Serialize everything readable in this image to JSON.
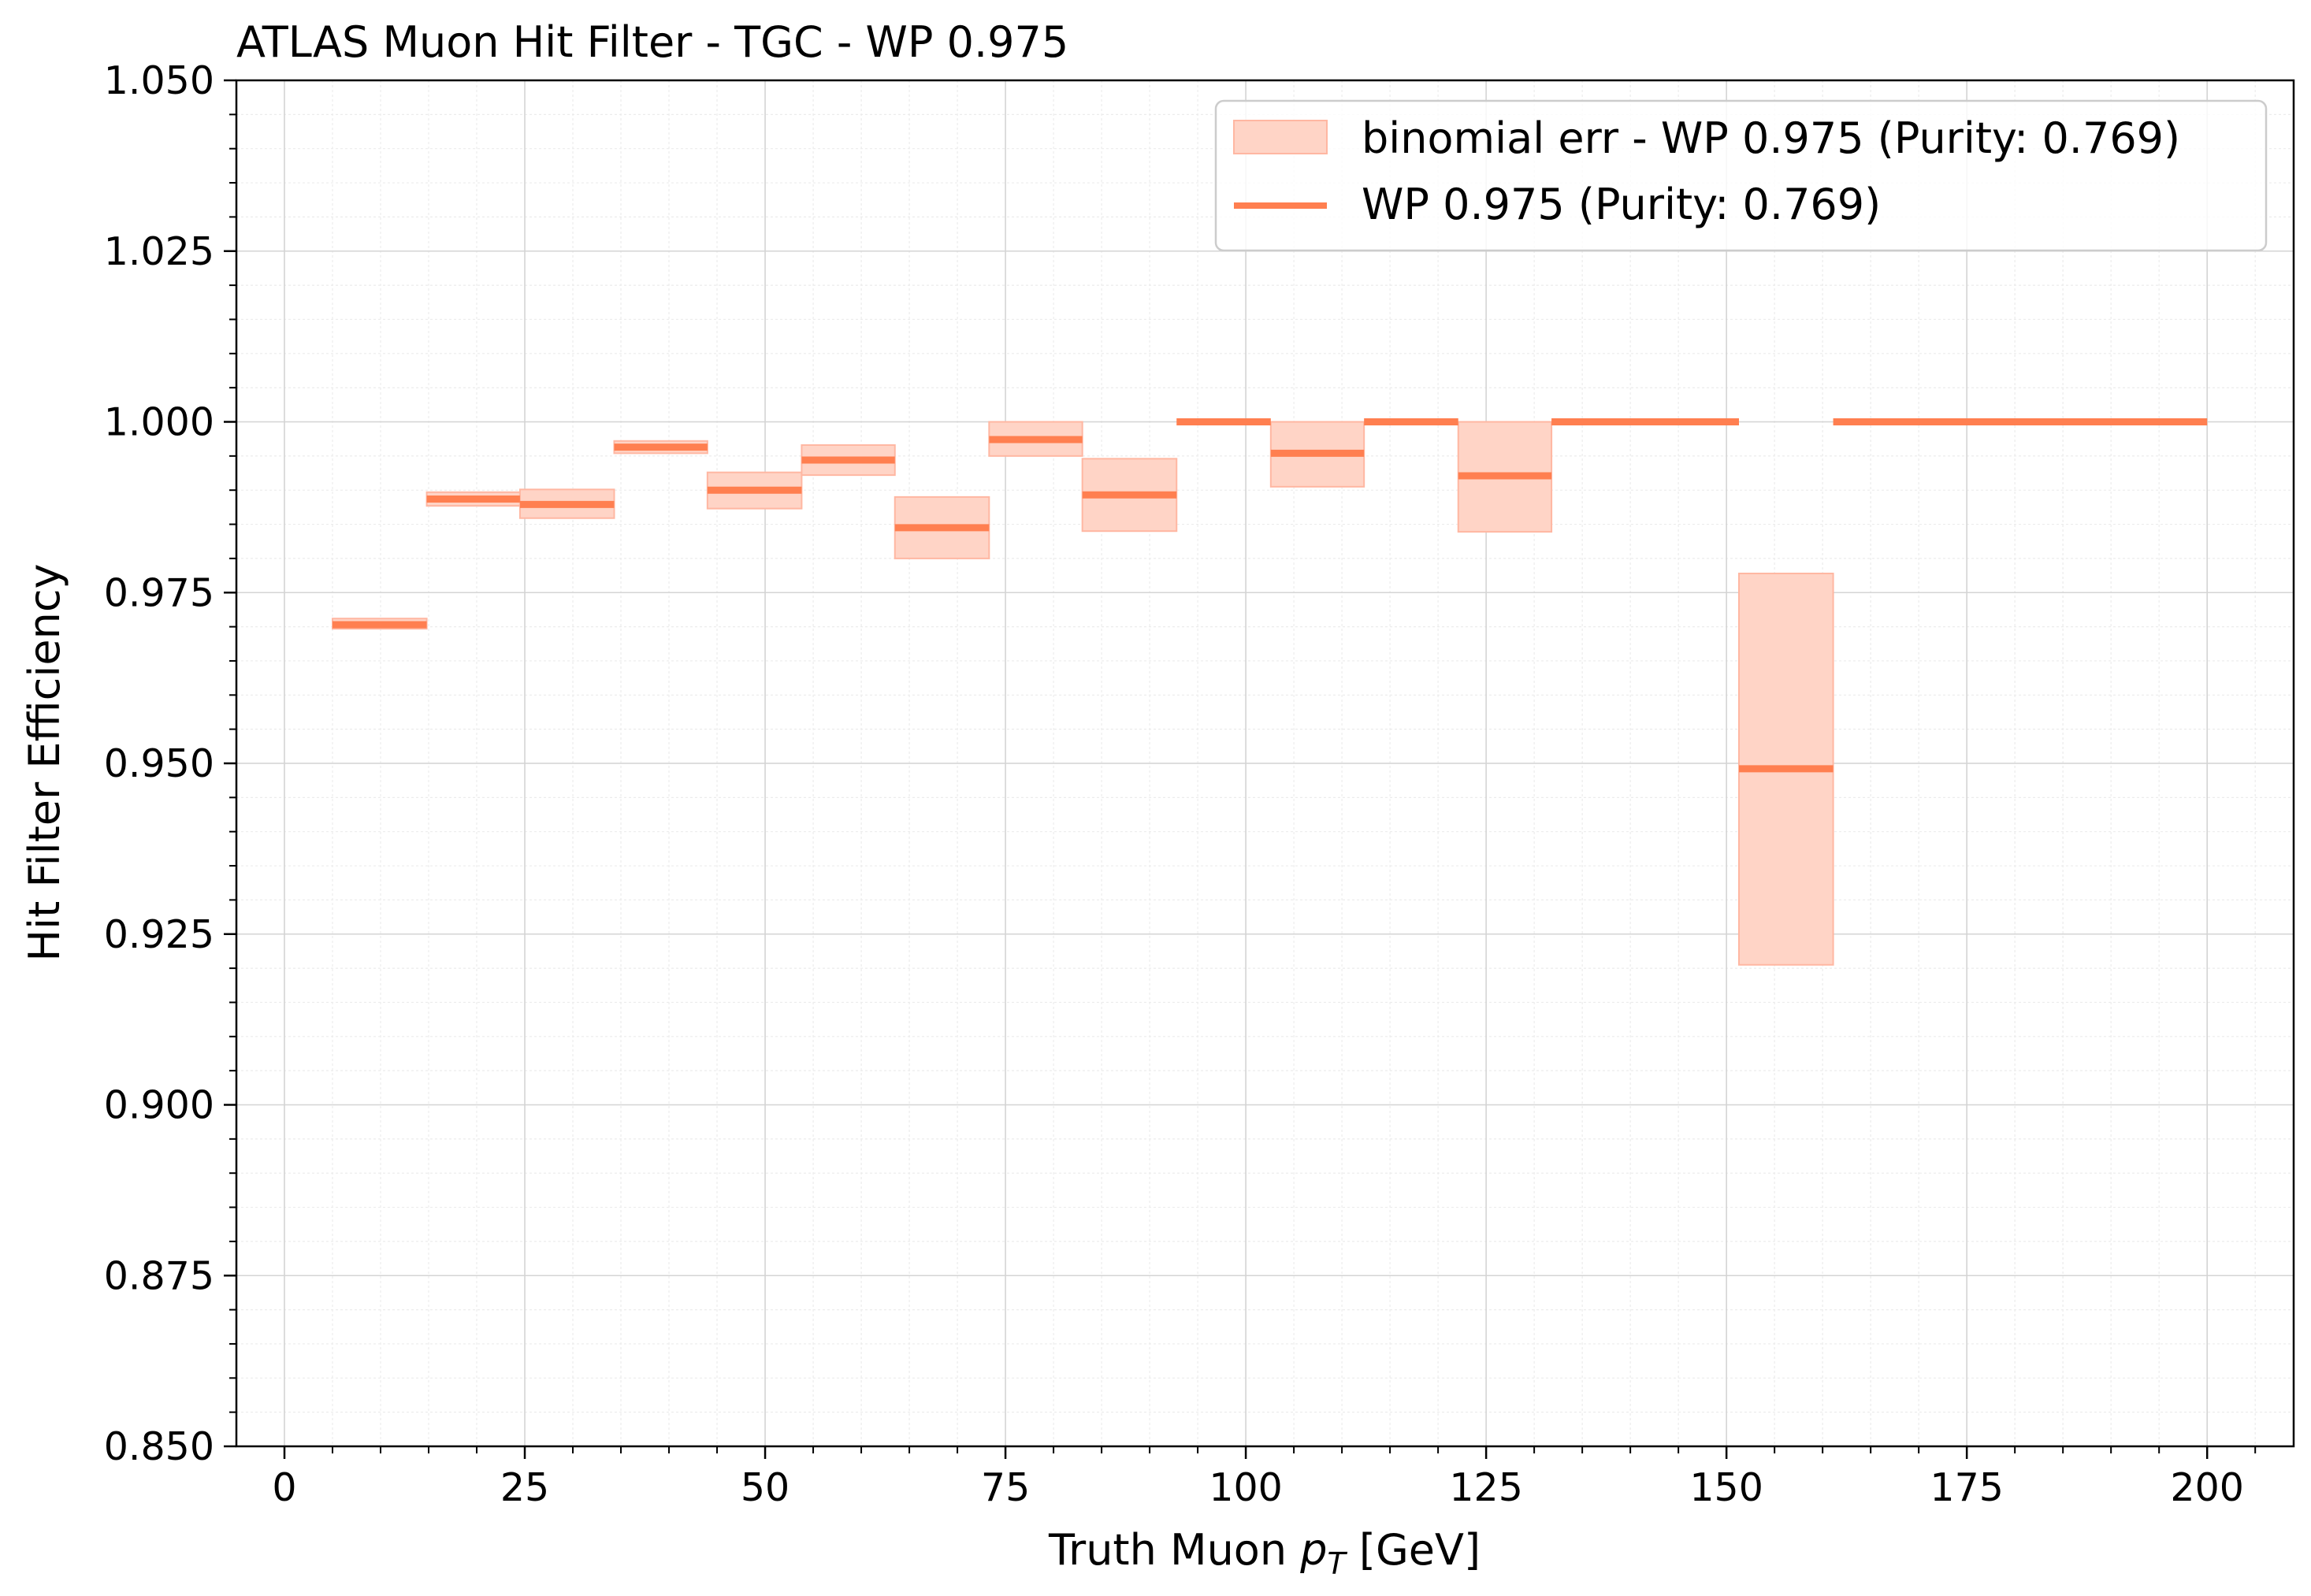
{
  "chart_data": {
    "type": "step-errorbar",
    "title": "ATLAS Muon Hit Filter - TGC - WP 0.975",
    "xlabel_prefix": "Truth Muon ",
    "xlabel_var": "p",
    "xlabel_sub": "T",
    "xlabel_suffix": " [GeV]",
    "ylabel": "Hit Filter Efficiency",
    "xlim": [
      -5,
      209
    ],
    "ylim": [
      0.85,
      1.05
    ],
    "xticks": [
      0,
      25,
      50,
      75,
      100,
      125,
      150,
      175,
      200
    ],
    "xtick_labels": [
      "0",
      "25",
      "50",
      "75",
      "100",
      "125",
      "150",
      "175",
      "200"
    ],
    "yticks": [
      0.85,
      0.875,
      0.9,
      0.925,
      0.95,
      0.975,
      1.0,
      1.025,
      1.05
    ],
    "ytick_labels": [
      "0.850",
      "0.875",
      "0.900",
      "0.925",
      "0.950",
      "0.975",
      "1.000",
      "1.025",
      "1.050"
    ],
    "grid": true,
    "minor_grid": true,
    "legend_position": "top-right",
    "colors": {
      "line": "#ff7f50",
      "band": "#ffd4c6",
      "band_edge": "#ffb7a2"
    },
    "series": [
      {
        "name": "binomial err - WP 0.975 (Purity: 0.769)",
        "kind": "band"
      },
      {
        "name": "WP 0.975 (Purity: 0.769)",
        "kind": "line",
        "bins": [
          {
            "x0": 5.0,
            "x1": 14.8,
            "y": 0.9703,
            "lo": 0.9697,
            "hi": 0.9712
          },
          {
            "x0": 14.8,
            "x1": 24.5,
            "y": 0.9887,
            "lo": 0.9877,
            "hi": 0.9897
          },
          {
            "x0": 24.5,
            "x1": 34.3,
            "y": 0.9879,
            "lo": 0.9859,
            "hi": 0.9901
          },
          {
            "x0": 34.3,
            "x1": 44.0,
            "y": 0.9963,
            "lo": 0.9954,
            "hi": 0.9972
          },
          {
            "x0": 44.0,
            "x1": 53.8,
            "y": 0.99,
            "lo": 0.9873,
            "hi": 0.9926
          },
          {
            "x0": 53.8,
            "x1": 63.5,
            "y": 0.9944,
            "lo": 0.9922,
            "hi": 0.9966
          },
          {
            "x0": 63.5,
            "x1": 73.3,
            "y": 0.9845,
            "lo": 0.98,
            "hi": 0.989
          },
          {
            "x0": 73.3,
            "x1": 83.0,
            "y": 0.9974,
            "lo": 0.995,
            "hi": 1.0
          },
          {
            "x0": 83.0,
            "x1": 92.8,
            "y": 0.9893,
            "lo": 0.984,
            "hi": 0.9946
          },
          {
            "x0": 92.8,
            "x1": 102.6,
            "y": 1.0,
            "lo": 1.0,
            "hi": 1.0
          },
          {
            "x0": 102.6,
            "x1": 112.3,
            "y": 0.9954,
            "lo": 0.9905,
            "hi": 1.0
          },
          {
            "x0": 112.3,
            "x1": 122.1,
            "y": 1.0,
            "lo": 1.0,
            "hi": 1.0
          },
          {
            "x0": 122.1,
            "x1": 131.8,
            "y": 0.9921,
            "lo": 0.9839,
            "hi": 1.0
          },
          {
            "x0": 131.8,
            "x1": 151.3,
            "y": 1.0,
            "lo": 1.0,
            "hi": 1.0
          },
          {
            "x0": 151.3,
            "x1": 161.1,
            "y": 0.9492,
            "lo": 0.9205,
            "hi": 0.9778
          },
          {
            "x0": 161.1,
            "x1": 200.0,
            "y": 1.0,
            "lo": 1.0,
            "hi": 1.0
          }
        ]
      }
    ]
  }
}
